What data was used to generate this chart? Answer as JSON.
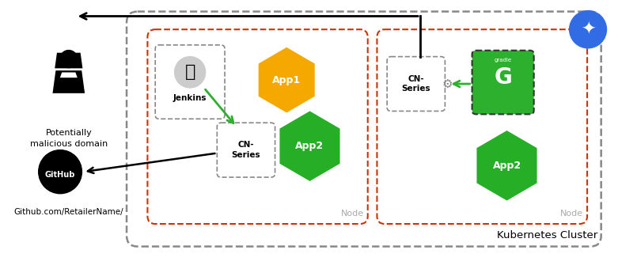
{
  "bg_color": "#ffffff",
  "fig_width": 7.81,
  "fig_height": 3.35,
  "hacker_label": "Potentially\nmalicious domain",
  "github_label": "Github.com/RetailerName/",
  "app1_color": "#f5a800",
  "app2_color": "#27ae27",
  "cn_border_color": "#888888",
  "node_border_color": "#cc3300",
  "k8s_border_color": "#888888",
  "node_label": "Node",
  "k8s_label": "Kubernetes Cluster",
  "k8s_blue": "#326ce5",
  "arrow_green": "#2db02d",
  "arrow_black": "#333333"
}
